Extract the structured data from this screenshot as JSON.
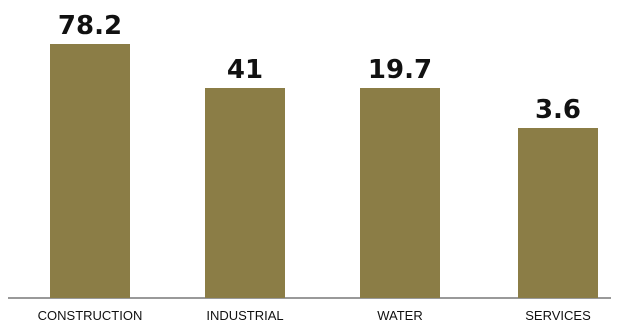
{
  "chart_data": {
    "type": "bar",
    "categories": [
      "CONSTRUCTION",
      "INDUSTRIAL",
      "WATER",
      "SERVICES"
    ],
    "values": [
      78.2,
      41,
      19.7,
      3.6
    ],
    "value_labels": [
      "78.2",
      "41",
      "19.7",
      "3.6"
    ],
    "title": "",
    "xlabel": "",
    "ylabel": "",
    "colors": {
      "bar": "#8b7d46",
      "axis": "#333333",
      "text": "#111111"
    },
    "grid": false,
    "legend": "none"
  }
}
